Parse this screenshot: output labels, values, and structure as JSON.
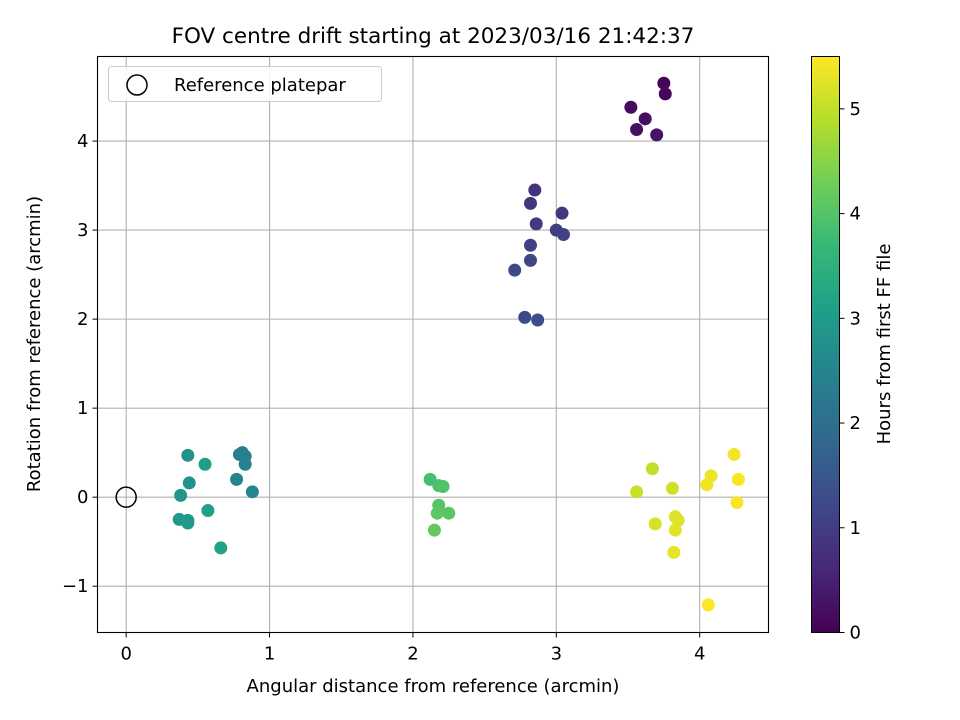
{
  "chart_data": {
    "type": "scatter",
    "title": "FOV centre drift starting at 2023/03/16 21:42:37",
    "xlabel": "Angular distance from reference (arcmin)",
    "ylabel": "Rotation from reference (arcmin)",
    "xlim": [
      -0.2,
      4.48
    ],
    "ylim": [
      -1.52,
      4.95
    ],
    "xticks": [
      0,
      1,
      2,
      3,
      4
    ],
    "yticks": [
      -1,
      0,
      1,
      2,
      3,
      4
    ],
    "grid": true,
    "legend": {
      "placement": "top-left",
      "entries": [
        "Reference platepar"
      ]
    },
    "reference_point": {
      "x": 0,
      "y": 0,
      "label": "Reference platepar"
    },
    "colorbar": {
      "label": "Hours from first FF file",
      "range": [
        0,
        5.5
      ],
      "ticks": [
        0,
        1,
        2,
        3,
        4,
        5
      ],
      "colormap": "viridis",
      "stops": [
        "#440154",
        "#482878",
        "#3e4989",
        "#31688e",
        "#26828e",
        "#1f9e89",
        "#35b779",
        "#6ece58",
        "#b5de2b",
        "#fde725"
      ]
    },
    "points": [
      {
        "x": 3.75,
        "y": 4.65,
        "h": 0.05
      },
      {
        "x": 3.76,
        "y": 4.53,
        "h": 0.1
      },
      {
        "x": 3.52,
        "y": 4.38,
        "h": 0.15
      },
      {
        "x": 3.62,
        "y": 4.25,
        "h": 0.2
      },
      {
        "x": 3.56,
        "y": 4.13,
        "h": 0.25
      },
      {
        "x": 3.7,
        "y": 4.07,
        "h": 0.3
      },
      {
        "x": 2.85,
        "y": 3.45,
        "h": 0.8
      },
      {
        "x": 2.82,
        "y": 3.3,
        "h": 0.85
      },
      {
        "x": 3.04,
        "y": 3.19,
        "h": 0.9
      },
      {
        "x": 2.86,
        "y": 3.07,
        "h": 0.95
      },
      {
        "x": 3.0,
        "y": 3.0,
        "h": 1.0
      },
      {
        "x": 3.05,
        "y": 2.95,
        "h": 1.05
      },
      {
        "x": 2.82,
        "y": 2.83,
        "h": 1.1
      },
      {
        "x": 2.82,
        "y": 2.66,
        "h": 1.15
      },
      {
        "x": 2.71,
        "y": 2.55,
        "h": 1.2
      },
      {
        "x": 2.78,
        "y": 2.02,
        "h": 1.25
      },
      {
        "x": 2.87,
        "y": 1.99,
        "h": 1.3
      },
      {
        "x": 0.81,
        "y": 0.5,
        "h": 2.3
      },
      {
        "x": 0.79,
        "y": 0.48,
        "h": 2.35
      },
      {
        "x": 0.83,
        "y": 0.46,
        "h": 2.4
      },
      {
        "x": 0.83,
        "y": 0.37,
        "h": 2.45
      },
      {
        "x": 0.77,
        "y": 0.2,
        "h": 2.5
      },
      {
        "x": 0.88,
        "y": 0.06,
        "h": 2.55
      },
      {
        "x": 0.43,
        "y": 0.47,
        "h": 2.75
      },
      {
        "x": 0.44,
        "y": 0.16,
        "h": 2.8
      },
      {
        "x": 0.38,
        "y": 0.02,
        "h": 2.85
      },
      {
        "x": 0.37,
        "y": -0.25,
        "h": 2.9
      },
      {
        "x": 0.43,
        "y": -0.26,
        "h": 2.95
      },
      {
        "x": 0.43,
        "y": -0.29,
        "h": 3.0
      },
      {
        "x": 0.55,
        "y": 0.37,
        "h": 3.05
      },
      {
        "x": 0.57,
        "y": -0.15,
        "h": 3.1
      },
      {
        "x": 0.66,
        "y": -0.57,
        "h": 3.15
      },
      {
        "x": 2.12,
        "y": 0.2,
        "h": 3.85
      },
      {
        "x": 2.18,
        "y": 0.13,
        "h": 3.9
      },
      {
        "x": 2.21,
        "y": 0.12,
        "h": 3.95
      },
      {
        "x": 2.18,
        "y": -0.09,
        "h": 4.0
      },
      {
        "x": 2.25,
        "y": -0.18,
        "h": 4.05
      },
      {
        "x": 2.17,
        "y": -0.18,
        "h": 4.1
      },
      {
        "x": 2.15,
        "y": -0.37,
        "h": 4.15
      },
      {
        "x": 3.67,
        "y": 0.32,
        "h": 5.0
      },
      {
        "x": 3.56,
        "y": 0.06,
        "h": 5.05
      },
      {
        "x": 3.81,
        "y": 0.1,
        "h": 5.1
      },
      {
        "x": 3.69,
        "y": -0.3,
        "h": 5.15
      },
      {
        "x": 3.83,
        "y": -0.22,
        "h": 5.2
      },
      {
        "x": 3.85,
        "y": -0.26,
        "h": 5.22
      },
      {
        "x": 3.83,
        "y": -0.37,
        "h": 5.25
      },
      {
        "x": 3.82,
        "y": -0.62,
        "h": 5.3
      },
      {
        "x": 4.08,
        "y": 0.24,
        "h": 5.35
      },
      {
        "x": 4.05,
        "y": 0.14,
        "h": 5.4
      },
      {
        "x": 4.24,
        "y": 0.48,
        "h": 5.42
      },
      {
        "x": 4.27,
        "y": 0.2,
        "h": 5.44
      },
      {
        "x": 4.26,
        "y": -0.06,
        "h": 5.46
      },
      {
        "x": 4.06,
        "y": -1.21,
        "h": 5.48
      }
    ]
  }
}
